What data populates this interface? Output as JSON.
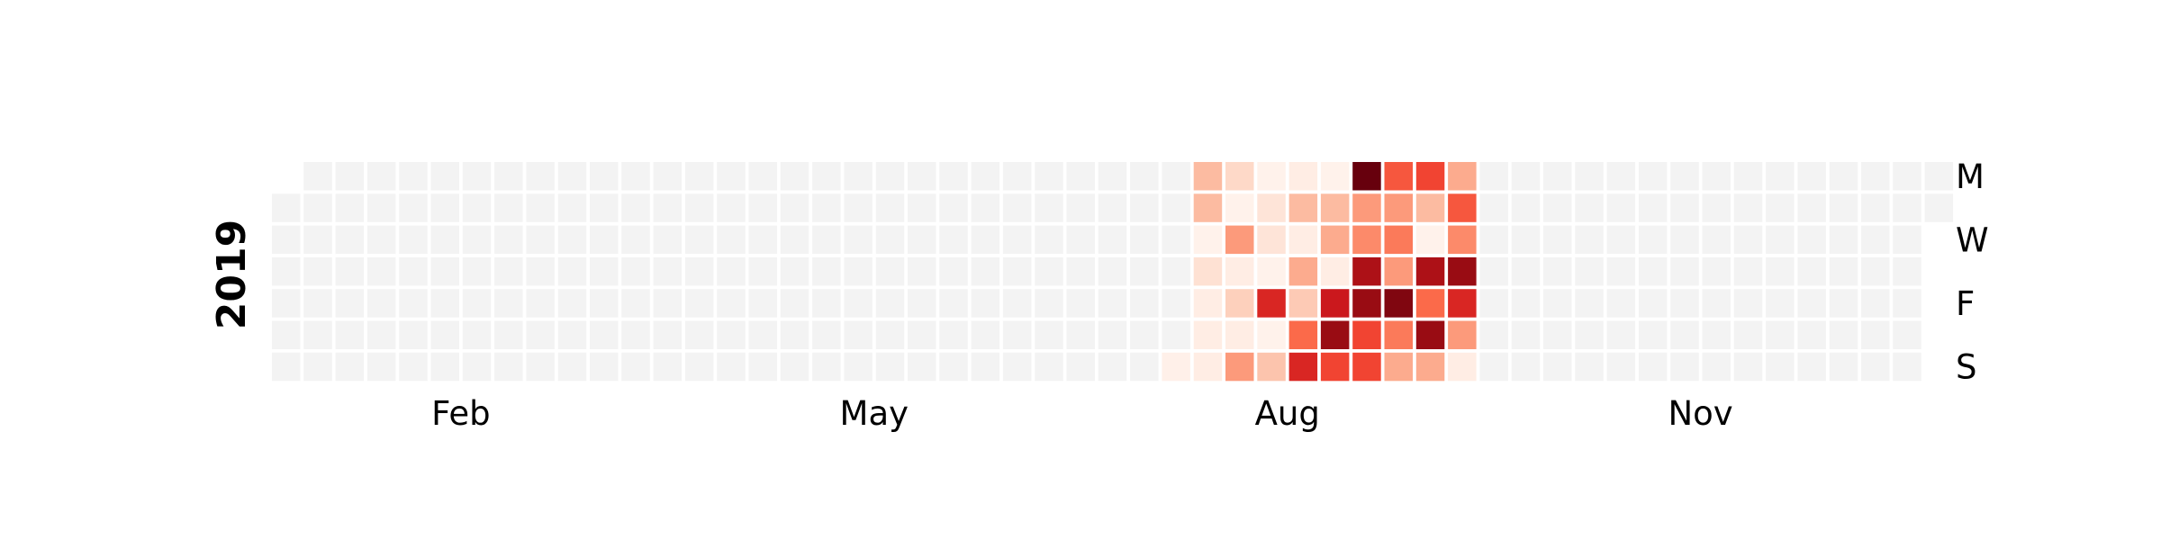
{
  "chart_data": {
    "type": "heatmap",
    "subtype": "calendar",
    "year": "2019",
    "month_labels": [
      "Feb",
      "May",
      "Aug",
      "Nov"
    ],
    "day_labels": [
      "M",
      "W",
      "F",
      "S"
    ],
    "colormap": "Reds",
    "value_range": [
      0,
      1
    ],
    "missing_color": "#f3f3f3",
    "active_weeks": [
      {
        "week": 28,
        "values": [
          null,
          null,
          null,
          null,
          null,
          null,
          0.03
        ]
      },
      {
        "week": 29,
        "values": [
          0.25,
          0.25,
          0.02,
          0.12,
          0.05,
          0.05,
          0.05
        ]
      },
      {
        "week": 30,
        "values": [
          0.15,
          0.02,
          0.35,
          0.05,
          0.18,
          0.05,
          0.35
        ]
      },
      {
        "week": 31,
        "values": [
          0.02,
          0.1,
          0.1,
          0.02,
          0.7,
          0.02,
          0.22
        ]
      },
      {
        "week": 32,
        "values": [
          0.05,
          0.25,
          0.05,
          0.3,
          0.2,
          0.5,
          0.7
        ]
      },
      {
        "week": 33,
        "values": [
          0.02,
          0.25,
          0.3,
          0.05,
          0.75,
          0.9,
          0.6
        ]
      },
      {
        "week": 34,
        "values": [
          1.0,
          0.35,
          0.4,
          0.85,
          0.9,
          0.6,
          0.6
        ]
      },
      {
        "week": 35,
        "values": [
          0.55,
          0.35,
          0.45,
          0.35,
          0.95,
          0.45,
          0.3
        ]
      },
      {
        "week": 36,
        "values": [
          0.6,
          0.25,
          0.02,
          0.85,
          0.5,
          0.9,
          0.3
        ]
      },
      {
        "week": 37,
        "values": [
          0.3,
          0.55,
          0.4,
          0.9,
          0.7,
          0.35,
          0.05
        ]
      }
    ]
  }
}
